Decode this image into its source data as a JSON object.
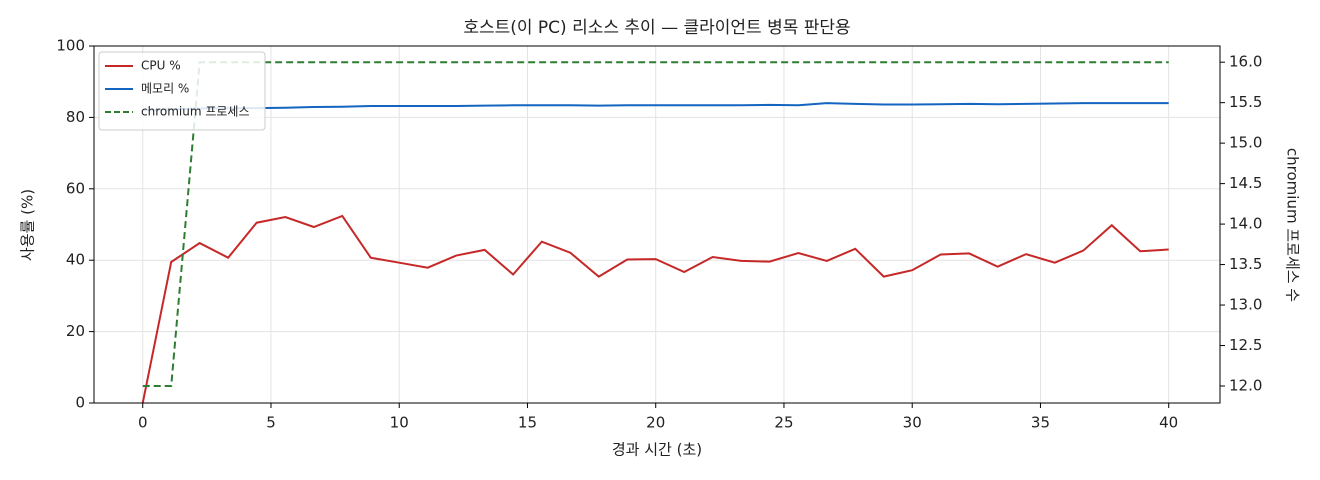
{
  "chart_data": {
    "type": "line",
    "title": "호스트(이 PC) 리소스 추이 — 클라이언트 병목 판단용",
    "x_label": "경과 시간 (초)",
    "y_label": "사용률 (%)",
    "y2_label": "chromium 프로세스 수",
    "x": [
      0,
      1.11,
      2.22,
      3.33,
      4.44,
      5.56,
      6.67,
      7.78,
      8.89,
      10,
      11.11,
      12.22,
      13.33,
      14.44,
      15.56,
      16.67,
      17.78,
      18.89,
      20,
      21.11,
      22.22,
      23.33,
      24.44,
      25.56,
      26.67,
      27.78,
      28.89,
      30,
      31.11,
      32.22,
      33.33,
      34.44,
      35.56,
      36.67,
      37.78,
      38.89,
      40
    ],
    "series": [
      {
        "name": "CPU %",
        "color": "#c62828",
        "linestyle": "solid",
        "axis": "y",
        "values": [
          0,
          39.5,
          44.8,
          40.7,
          50.5,
          52.1,
          49.3,
          52.4,
          40.7,
          39.3,
          37.9,
          41.3,
          42.9,
          36.0,
          45.2,
          42.1,
          35.4,
          40.2,
          40.3,
          36.7,
          40.9,
          39.8,
          39.6,
          42.0,
          39.8,
          43.2,
          35.4,
          37.2,
          41.6,
          41.9,
          38.2,
          41.7,
          39.3,
          42.7,
          49.8,
          42.5,
          43.0
        ]
      },
      {
        "name": "메모리 %",
        "color": "#1565c0",
        "linestyle": "solid",
        "axis": "y",
        "values": [
          82.0,
          82.3,
          82.5,
          82.6,
          82.6,
          82.7,
          82.9,
          83.0,
          83.2,
          83.2,
          83.2,
          83.2,
          83.3,
          83.4,
          83.4,
          83.4,
          83.3,
          83.4,
          83.4,
          83.4,
          83.4,
          83.4,
          83.5,
          83.4,
          84.0,
          83.8,
          83.6,
          83.6,
          83.7,
          83.8,
          83.7,
          83.8,
          83.9,
          84.0,
          84.0,
          84.0,
          84.0
        ]
      },
      {
        "name": "chromium 프로세스",
        "color": "#2e7d32",
        "linestyle": "dashed",
        "axis": "y2",
        "values": [
          12,
          12,
          16,
          16,
          16,
          16,
          16,
          16,
          16,
          16,
          16,
          16,
          16,
          16,
          16,
          16,
          16,
          16,
          16,
          16,
          16,
          16,
          16,
          16,
          16,
          16,
          16,
          16,
          16,
          16,
          16,
          16,
          16,
          16,
          16,
          16,
          16
        ]
      }
    ],
    "xlim": [
      -1.9,
      42
    ],
    "xticks": [
      0,
      5,
      10,
      15,
      20,
      25,
      30,
      35,
      40
    ],
    "ylim": [
      0,
      100
    ],
    "yticks": [
      0,
      20,
      40,
      60,
      80,
      100
    ],
    "y2lim": [
      11.79,
      16.2
    ],
    "y2ticks": [
      {
        "value": 12,
        "label": "12.0"
      },
      12.5,
      {
        "value": 13,
        "label": "13.0"
      },
      13.5,
      {
        "value": 14,
        "label": "14.0"
      },
      14.5,
      {
        "value": 15,
        "label": "15.0"
      },
      15.5,
      {
        "value": 16,
        "label": "16.0"
      }
    ],
    "grid": true,
    "legend": "upper left"
  }
}
